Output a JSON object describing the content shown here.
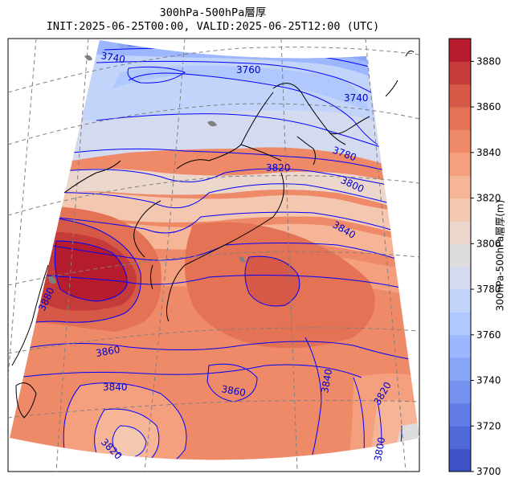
{
  "title": {
    "line1": "300hPa-500hPa層厚",
    "line2": "INIT:2025-06-25T00:00, VALID:2025-06-25T12:00 (UTC)"
  },
  "colorbar": {
    "label": "300hPa-500hPa層厚(m)",
    "min": 3700,
    "max": 3890,
    "ticks": [
      3700,
      3720,
      3740,
      3760,
      3780,
      3800,
      3820,
      3840,
      3860,
      3880
    ],
    "levels": [
      {
        "from": 3700,
        "to": 3710,
        "color": "#3f53c8"
      },
      {
        "from": 3710,
        "to": 3720,
        "color": "#5068d8"
      },
      {
        "from": 3720,
        "to": 3730,
        "color": "#627de6"
      },
      {
        "from": 3730,
        "to": 3740,
        "color": "#7592f0"
      },
      {
        "from": 3740,
        "to": 3750,
        "color": "#88a5f8"
      },
      {
        "from": 3750,
        "to": 3760,
        "color": "#9cb7fd"
      },
      {
        "from": 3760,
        "to": 3770,
        "color": "#b0c8fe"
      },
      {
        "from": 3770,
        "to": 3780,
        "color": "#c3d4fa"
      },
      {
        "from": 3780,
        "to": 3790,
        "color": "#d4dbf1"
      },
      {
        "from": 3790,
        "to": 3800,
        "color": "#dedcdc"
      },
      {
        "from": 3800,
        "to": 3810,
        "color": "#ebd7cc"
      },
      {
        "from": 3810,
        "to": 3820,
        "color": "#f4c8b0"
      },
      {
        "from": 3820,
        "to": 3830,
        "color": "#f6b596"
      },
      {
        "from": 3830,
        "to": 3840,
        "color": "#f4a07e"
      },
      {
        "from": 3840,
        "to": 3850,
        "color": "#ee8a68"
      },
      {
        "from": 3850,
        "to": 3860,
        "color": "#e47255"
      },
      {
        "from": 3860,
        "to": 3870,
        "color": "#d65846"
      },
      {
        "from": 3870,
        "to": 3880,
        "color": "#c53b39"
      },
      {
        "from": 3880,
        "to": 3890,
        "color": "#b51d2e"
      }
    ]
  },
  "contour_labels": [
    {
      "text": "3740",
      "kind": "upper-left"
    },
    {
      "text": "3760",
      "kind": "upper-mid"
    },
    {
      "text": "3740",
      "kind": "upper-right"
    },
    {
      "text": "3780",
      "kind": "northeast"
    },
    {
      "text": "3820",
      "kind": "central-north"
    },
    {
      "text": "3800",
      "kind": "east"
    },
    {
      "text": "3840",
      "kind": "east-south"
    },
    {
      "text": "3880",
      "kind": "west"
    },
    {
      "text": "3860",
      "kind": "southwest"
    },
    {
      "text": "3840",
      "kind": "south"
    },
    {
      "text": "3860",
      "kind": "south-central"
    },
    {
      "text": "3840",
      "kind": "south-east"
    },
    {
      "text": "3820",
      "kind": "southeast-edge"
    },
    {
      "text": "3800",
      "kind": "bottom-right"
    },
    {
      "text": "3820",
      "kind": "bottom-left"
    }
  ],
  "colors": {
    "contour": "#0000ff",
    "contour_label": "#0000cc",
    "coastline": "#000000",
    "graticule": "#808080",
    "land_outside": "#808080"
  }
}
